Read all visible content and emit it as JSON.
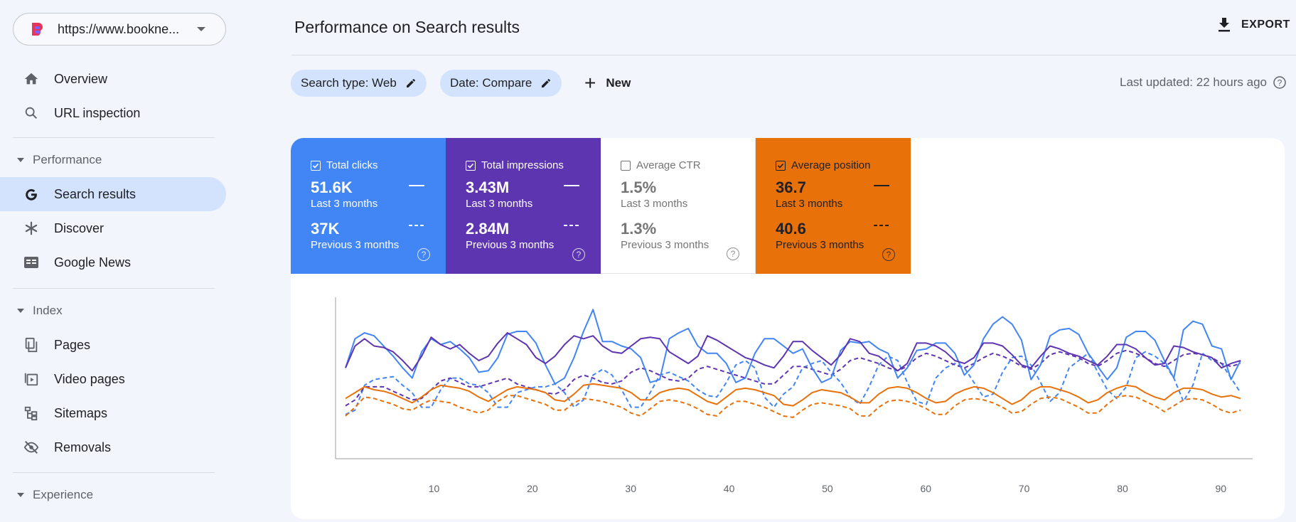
{
  "property": {
    "url": "https://www.bookne..."
  },
  "nav": {
    "overview": "Overview",
    "url_inspection": "URL inspection",
    "performance_section": "Performance",
    "search_results": "Search results",
    "discover": "Discover",
    "google_news": "Google News",
    "index_section": "Index",
    "pages": "Pages",
    "video_pages": "Video pages",
    "sitemaps": "Sitemaps",
    "removals": "Removals",
    "experience_section": "Experience"
  },
  "header": {
    "title": "Performance on Search results",
    "export_label": "EXPORT"
  },
  "filters": {
    "search_type": "Search type: Web",
    "date": "Date: Compare",
    "new_label": "New",
    "last_updated": "Last updated: 22 hours ago"
  },
  "metrics": [
    {
      "id": "clicks",
      "label": "Total clicks",
      "checked": true,
      "current": "51.6K",
      "current_period": "Last 3 months",
      "previous": "37K",
      "previous_period": "Previous 3 months"
    },
    {
      "id": "impressions",
      "label": "Total impressions",
      "checked": true,
      "current": "3.43M",
      "current_period": "Last 3 months",
      "previous": "2.84M",
      "previous_period": "Previous 3 months"
    },
    {
      "id": "ctr",
      "label": "Average CTR",
      "checked": false,
      "current": "1.5%",
      "current_period": "Last 3 months",
      "previous": "1.3%",
      "previous_period": "Previous 3 months"
    },
    {
      "id": "position",
      "label": "Average position",
      "checked": true,
      "current": "36.7",
      "current_period": "Last 3 months",
      "previous": "40.6",
      "previous_period": "Previous 3 months"
    }
  ],
  "colors": {
    "clicks": "#4285f4",
    "impressions": "#5e35b1",
    "position": "#e8710a",
    "active_nav": "#d3e3fd"
  },
  "chart_data": {
    "type": "line",
    "xlim": [
      1,
      92
    ],
    "x_ticks": [
      "10",
      "20",
      "30",
      "40",
      "50",
      "60",
      "70",
      "80",
      "90"
    ],
    "ylim": [
      0,
      100
    ],
    "series": [
      {
        "metric": "clicks",
        "period": "current",
        "style": "solid",
        "color": "#4285f4",
        "values": [
          55,
          75,
          79,
          77,
          70,
          63,
          55,
          48,
          66,
          75,
          71,
          73,
          68,
          62,
          52,
          53,
          62,
          78,
          80,
          80,
          72,
          57,
          44,
          48,
          62,
          80,
          95,
          73,
          73,
          70,
          68,
          62,
          45,
          47,
          75,
          79,
          82,
          70,
          65,
          65,
          58,
          45,
          48,
          65,
          75,
          75,
          70,
          65,
          68,
          55,
          45,
          48,
          67,
          73,
          72,
          73,
          68,
          65,
          48,
          55,
          67,
          68,
          72,
          72,
          65,
          50,
          57,
          75,
          85,
          90,
          85,
          74,
          47,
          57,
          77,
          81,
          82,
          78,
          65,
          56,
          47,
          55,
          76,
          80,
          80,
          74,
          60,
          48,
          81,
          87,
          85,
          70,
          68,
          47,
          60
        ]
      },
      {
        "metric": "clicks",
        "period": "previous",
        "style": "dashed",
        "color": "#4285f4",
        "values": [
          23,
          26,
          43,
          47,
          48,
          49,
          43,
          38,
          28,
          28,
          40,
          48,
          48,
          44,
          43,
          38,
          28,
          28,
          38,
          40,
          42,
          42,
          44,
          38,
          28,
          33,
          50,
          54,
          50,
          40,
          28,
          28,
          38,
          50,
          52,
          49,
          46,
          40,
          36,
          35,
          45,
          57,
          60,
          55,
          35,
          28,
          37,
          42,
          55,
          58,
          60,
          52,
          45,
          35,
          30,
          42,
          57,
          63,
          60,
          45,
          32,
          30,
          48,
          55,
          58,
          55,
          45,
          35,
          37,
          52,
          62,
          63,
          57,
          45,
          32,
          38,
          55,
          60,
          65,
          52,
          40,
          34,
          42,
          62,
          66,
          63,
          58,
          48,
          32,
          43,
          65,
          60,
          58,
          48,
          38
        ]
      },
      {
        "metric": "impressions",
        "period": "current",
        "style": "solid",
        "color": "#5e35b1",
        "values": [
          55,
          70,
          75,
          70,
          69,
          66,
          60,
          53,
          63,
          76,
          71,
          68,
          71,
          65,
          60,
          63,
          72,
          79,
          75,
          71,
          62,
          58,
          63,
          71,
          77,
          75,
          77,
          70,
          66,
          65,
          70,
          75,
          76,
          75,
          66,
          62,
          58,
          63,
          77,
          74,
          70,
          66,
          62,
          60,
          57,
          55,
          63,
          73,
          73,
          67,
          62,
          57,
          64,
          75,
          73,
          65,
          63,
          58,
          53,
          58,
          72,
          72,
          70,
          66,
          60,
          58,
          62,
          72,
          72,
          70,
          64,
          57,
          55,
          63,
          70,
          68,
          65,
          63,
          60,
          57,
          63,
          71,
          71,
          68,
          62,
          57,
          58,
          70,
          69,
          66,
          64,
          62,
          55,
          58,
          60
        ]
      },
      {
        "metric": "impressions",
        "period": "previous",
        "style": "dashed",
        "color": "#5e35b1",
        "values": [
          29,
          33,
          42,
          42,
          42,
          39,
          36,
          33,
          34,
          40,
          46,
          48,
          45,
          42,
          42,
          44,
          46,
          48,
          44,
          42,
          40,
          38,
          37,
          40,
          47,
          50,
          48,
          45,
          44,
          46,
          52,
          55,
          53,
          50,
          47,
          46,
          48,
          54,
          56,
          54,
          52,
          50,
          48,
          46,
          44,
          44,
          50,
          56,
          56,
          54,
          52,
          50,
          54,
          60,
          62,
          60,
          58,
          55,
          53,
          56,
          62,
          65,
          63,
          60,
          57,
          55,
          58,
          62,
          65,
          63,
          60,
          56,
          54,
          58,
          64,
          66,
          64,
          62,
          58,
          56,
          60,
          65,
          67,
          65,
          62,
          58,
          56,
          60,
          64,
          65,
          64,
          62,
          58,
          56,
          58
        ]
      },
      {
        "metric": "position",
        "period": "current",
        "style": "solid",
        "color": "#e8710a",
        "values": [
          34,
          38,
          42,
          40,
          39,
          37,
          34,
          31,
          35,
          40,
          43,
          42,
          41,
          39,
          35,
          32,
          36,
          40,
          42,
          41,
          40,
          38,
          33,
          32,
          37,
          43,
          44,
          43,
          42,
          41,
          38,
          33,
          33,
          38,
          40,
          41,
          40,
          36,
          32,
          30,
          35,
          40,
          41,
          40,
          38,
          36,
          30,
          29,
          33,
          38,
          40,
          39,
          38,
          35,
          31,
          31,
          37,
          41,
          42,
          41,
          38,
          34,
          31,
          32,
          37,
          40,
          42,
          41,
          38,
          34,
          30,
          33,
          39,
          42,
          42,
          40,
          38,
          35,
          31,
          33,
          38,
          41,
          43,
          42,
          38,
          35,
          33,
          38,
          41,
          41,
          40,
          37,
          35,
          36,
          34
        ]
      },
      {
        "metric": "position",
        "period": "previous",
        "style": "dashed",
        "color": "#e8710a",
        "values": [
          22,
          28,
          35,
          34,
          32,
          30,
          27,
          26,
          30,
          33,
          32,
          31,
          28,
          26,
          24,
          26,
          32,
          36,
          36,
          34,
          32,
          30,
          26,
          26,
          31,
          34,
          33,
          32,
          30,
          28,
          24,
          22,
          27,
          32,
          33,
          32,
          30,
          27,
          23,
          22,
          28,
          32,
          32,
          30,
          28,
          25,
          22,
          21,
          26,
          30,
          31,
          30,
          29,
          27,
          22,
          22,
          28,
          32,
          33,
          32,
          30,
          27,
          23,
          23,
          29,
          33,
          34,
          33,
          31,
          28,
          24,
          25,
          30,
          34,
          35,
          34,
          31,
          28,
          24,
          24,
          30,
          35,
          36,
          35,
          32,
          29,
          25,
          29,
          33,
          34,
          33,
          30,
          26,
          24,
          26
        ]
      }
    ]
  }
}
